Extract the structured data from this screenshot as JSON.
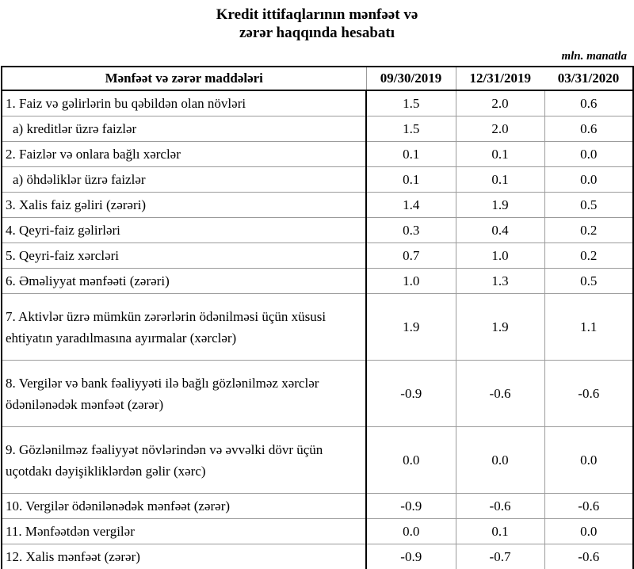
{
  "title": {
    "line1": "Kredit ittifaqlarının mənfəət və",
    "line2": "zərər haqqında hesabatı"
  },
  "unit_note": "mln. manatla",
  "colors": {
    "text": "#000000",
    "background": "#ffffff",
    "border_strong": "#000000",
    "border_light": "#9b9b9b"
  },
  "table": {
    "header": {
      "label": "Mənfəət və zərər maddələri",
      "columns": [
        "09/30/2019",
        "12/31/2019",
        "03/31/2020"
      ]
    },
    "rows": [
      {
        "label": "1. Faiz və gəlirlərin bu qəbildən olan növləri",
        "indent": false,
        "tall": false,
        "values": [
          "1.5",
          "2.0",
          "0.6"
        ]
      },
      {
        "label": "a) kreditlər üzrə faizlər",
        "indent": true,
        "tall": false,
        "values": [
          "1.5",
          "2.0",
          "0.6"
        ]
      },
      {
        "label": "2. Faizlər və onlara bağlı xərclər",
        "indent": false,
        "tall": false,
        "values": [
          "0.1",
          "0.1",
          "0.0"
        ]
      },
      {
        "label": "a) öhdəliklər üzrə faizlər",
        "indent": true,
        "tall": false,
        "values": [
          "0.1",
          "0.1",
          "0.0"
        ]
      },
      {
        "label": "3. Xalis faiz gəliri (zərəri)",
        "indent": false,
        "tall": false,
        "values": [
          "1.4",
          "1.9",
          "0.5"
        ]
      },
      {
        "label": "4. Qeyri-faiz gəlirləri",
        "indent": false,
        "tall": false,
        "values": [
          "0.3",
          "0.4",
          "0.2"
        ]
      },
      {
        "label": "5. Qeyri-faiz xərcləri",
        "indent": false,
        "tall": false,
        "values": [
          "0.7",
          "1.0",
          "0.2"
        ]
      },
      {
        "label": "6. Əməliyyat mənfəəti (zərəri)",
        "indent": false,
        "tall": false,
        "values": [
          "1.0",
          "1.3",
          "0.5"
        ]
      },
      {
        "label": "7. Aktivlər üzrə mümkün zərərlərin ödənilməsi üçün xüsusi ehtiyatın yaradılmasına ayırmalar (xərclər)",
        "indent": false,
        "tall": true,
        "values": [
          "1.9",
          "1.9",
          "1.1"
        ]
      },
      {
        "label": "8. Vergilər və bank fəaliyyəti ilə bağlı gözlənilməz xərclər ödənilənədək mənfəət (zərər)",
        "indent": false,
        "tall": true,
        "values": [
          "-0.9",
          "-0.6",
          "-0.6"
        ]
      },
      {
        "label": "9. Gözlənilməz fəaliyyət növlərindən və əvvəlki dövr üçün uçotdakı dəyişikliklərdən gəlir (xərc)",
        "indent": false,
        "tall": true,
        "values": [
          "0.0",
          "0.0",
          "0.0"
        ]
      },
      {
        "label": "10. Vergilər ödənilənədək mənfəət (zərər)",
        "indent": false,
        "tall": false,
        "values": [
          "-0.9",
          "-0.6",
          "-0.6"
        ]
      },
      {
        "label": "11. Mənfəətdən vergilər",
        "indent": false,
        "tall": false,
        "values": [
          "0.0",
          "0.1",
          "0.0"
        ]
      },
      {
        "label": "12. Xalis mənfəət (zərər)",
        "indent": false,
        "tall": false,
        "values": [
          "-0.9",
          "-0.7",
          "-0.6"
        ]
      }
    ]
  }
}
